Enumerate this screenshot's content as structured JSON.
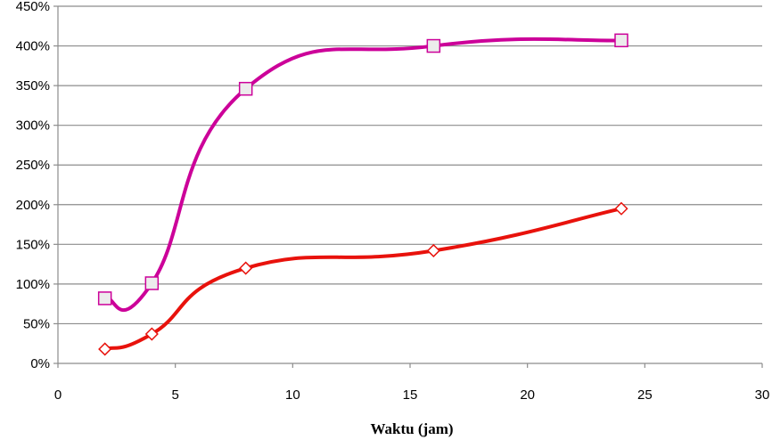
{
  "chart_data": {
    "type": "line",
    "title": "",
    "xlabel": "Waktu (jam)",
    "ylabel": "",
    "xlim": [
      0,
      30
    ],
    "ylim": [
      0,
      450
    ],
    "x_ticks": [
      "0",
      "5",
      "10",
      "15",
      "20",
      "25",
      "30"
    ],
    "y_ticks": [
      "0%",
      "50%",
      "100%",
      "150%",
      "200%",
      "250%",
      "300%",
      "350%",
      "400%",
      "450%"
    ],
    "grid": "horizontal",
    "legend": "none",
    "series": [
      {
        "x": [
          2,
          4,
          8,
          16,
          24
        ],
        "values": [
          82,
          101,
          346,
          400,
          407
        ],
        "unit": "%",
        "color": "#cc0099",
        "marker": "square",
        "smooth": true
      },
      {
        "x": [
          2,
          4,
          8,
          16,
          24
        ],
        "values": [
          18,
          37,
          120,
          142,
          195
        ],
        "unit": "%",
        "color": "#e8120c",
        "marker": "diamond",
        "smooth": true
      }
    ]
  }
}
